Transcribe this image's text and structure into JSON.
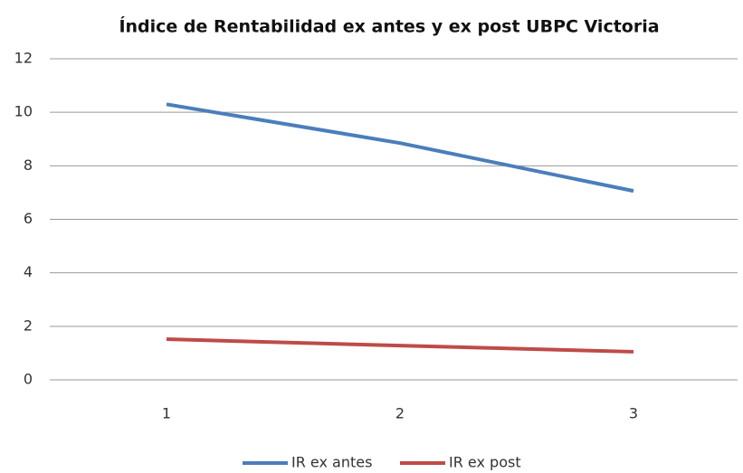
{
  "chart_data": {
    "type": "line",
    "title": "Índice de Rentabilidad ex antes y ex post UBPC Victoria",
    "categories": [
      "1",
      "2",
      "3"
    ],
    "series": [
      {
        "name": "IR ex antes",
        "color": "#4a7ebb",
        "values": [
          10.3,
          8.85,
          7.06
        ]
      },
      {
        "name": "IR ex post",
        "color": "#be4b48",
        "values": [
          1.52,
          1.28,
          1.05
        ]
      }
    ],
    "ylim": [
      0,
      12
    ],
    "yticks": [
      0,
      2,
      4,
      6,
      8,
      10,
      12
    ],
    "grid": true,
    "legend": "bottom"
  }
}
